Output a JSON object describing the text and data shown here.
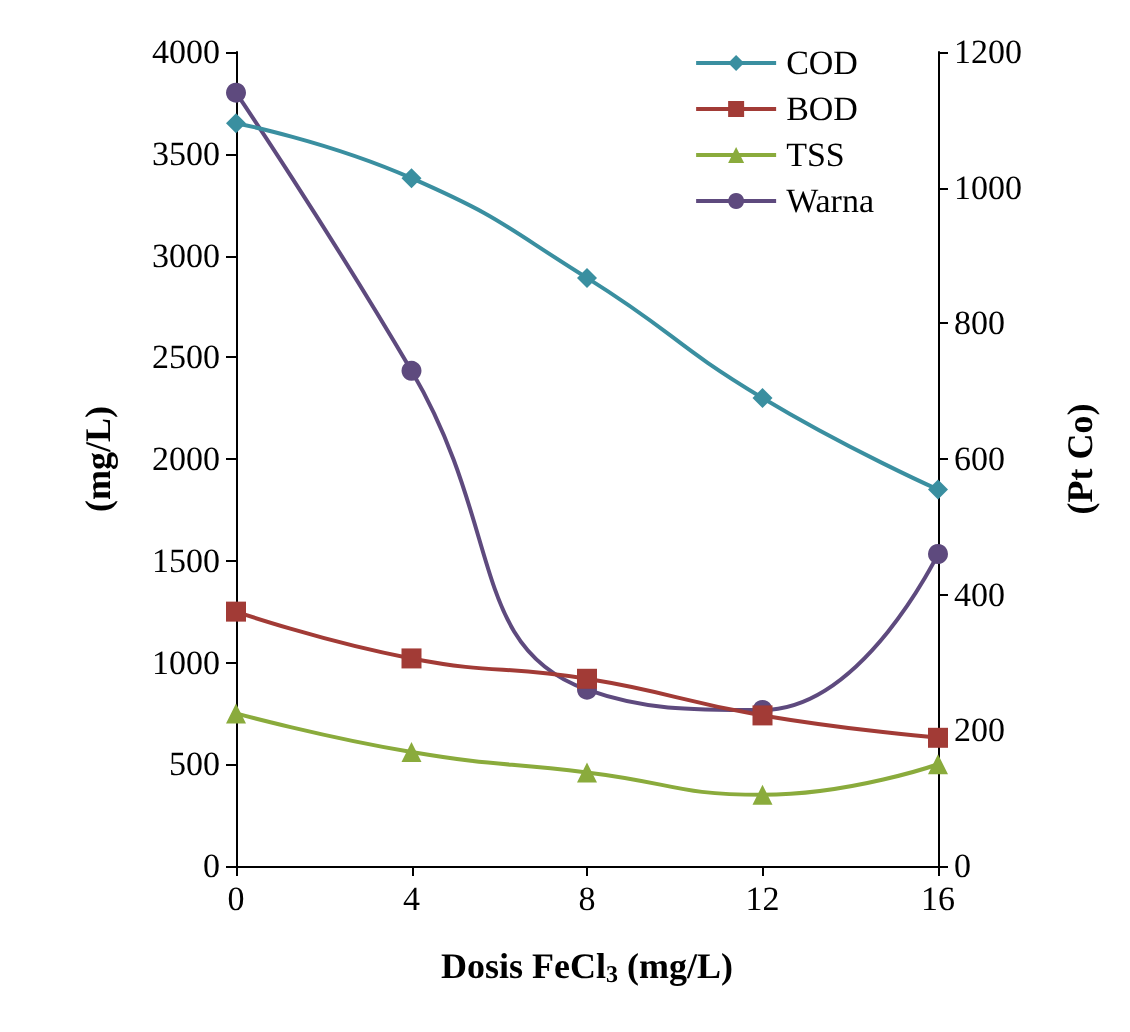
{
  "chart_data": {
    "type": "line",
    "xlabel": "Dosis FeCl$_{3}$ (mg/L)",
    "ylabel": "(mg/L)",
    "y2label": "(Pt Co)",
    "x": [
      0,
      4,
      8,
      12,
      16
    ],
    "xlim": [
      0,
      16
    ],
    "xticks": [
      0,
      4,
      8,
      12,
      16
    ],
    "ylim": [
      0,
      4000
    ],
    "yticks": [
      0,
      500,
      1000,
      1500,
      2000,
      2500,
      3000,
      3500,
      4000
    ],
    "y2lim": [
      0,
      1200
    ],
    "y2ticks": [
      0,
      200,
      400,
      600,
      800,
      1000,
      1200
    ],
    "grid": false,
    "legend": "top right",
    "series": [
      {
        "name": "COD",
        "color": "#3a8fa0",
        "marker": "diamond",
        "values": [
          3650,
          3380,
          2890,
          2300,
          1850
        ]
      },
      {
        "name": "BOD",
        "color": "#a23b36",
        "marker": "square",
        "values": [
          1250,
          1020,
          920,
          740,
          630
        ]
      },
      {
        "name": "TSS",
        "color": "#8aab3c",
        "marker": "triangle",
        "values": [
          750,
          560,
          460,
          350,
          500
        ]
      },
      {
        "name": "Warna",
        "color": "#5e4a7e",
        "marker": "circle",
        "axis": "y2",
        "values": [
          1140,
          730,
          260,
          230,
          460
        ]
      }
    ]
  }
}
